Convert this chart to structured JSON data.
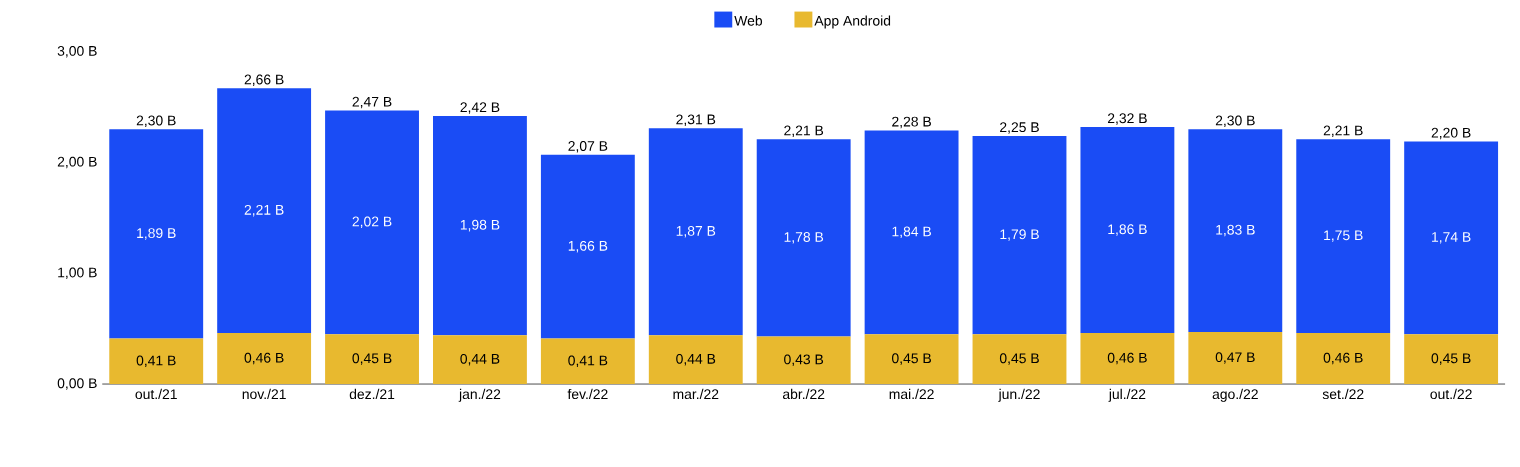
{
  "chart_data": {
    "type": "bar",
    "stacked": true,
    "legend": "top",
    "categories": [
      "out./21",
      "nov./21",
      "dez./21",
      "jan./22",
      "fev./22",
      "mar./22",
      "abr./22",
      "mai./22",
      "jun./22",
      "jul./22",
      "ago./22",
      "set./22",
      "out./22"
    ],
    "series": [
      {
        "name": "App Android",
        "color": "#e8b92f",
        "values": [
          0.41,
          0.46,
          0.45,
          0.44,
          0.41,
          0.44,
          0.43,
          0.45,
          0.45,
          0.46,
          0.47,
          0.46,
          0.45
        ],
        "value_labels": [
          "0,41 B",
          "0,46 B",
          "0,45 B",
          "0,44 B",
          "0,41 B",
          "0,44 B",
          "0,43 B",
          "0,45 B",
          "0,45 B",
          "0,46 B",
          "0,47 B",
          "0,46 B",
          "0,45 B"
        ]
      },
      {
        "name": "Web",
        "color": "#1a4cf5",
        "values": [
          1.89,
          2.21,
          2.02,
          1.98,
          1.66,
          1.87,
          1.78,
          1.84,
          1.79,
          1.86,
          1.83,
          1.75,
          1.74
        ],
        "value_labels": [
          "1,89 B",
          "2,21 B",
          "2,02 B",
          "1,98 B",
          "1,66 B",
          "1,87 B",
          "1,78 B",
          "1,84 B",
          "1,79 B",
          "1,86 B",
          "1,83 B",
          "1,75 B",
          "1,74 B"
        ]
      }
    ],
    "totals": [
      "2,30 B",
      "2,66 B",
      "2,47 B",
      "2,42 B",
      "2,07 B",
      "2,31 B",
      "2,21 B",
      "2,28 B",
      "2,25 B",
      "2,32 B",
      "2,30 B",
      "2,21 B",
      "2,20 B"
    ],
    "ylim": [
      0,
      3
    ],
    "yticks": [
      {
        "value": 0,
        "label": "0,00 B"
      },
      {
        "value": 1,
        "label": "1,00 B"
      },
      {
        "value": 2,
        "label": "2,00 B"
      },
      {
        "value": 3,
        "label": "3,00 B"
      }
    ]
  }
}
